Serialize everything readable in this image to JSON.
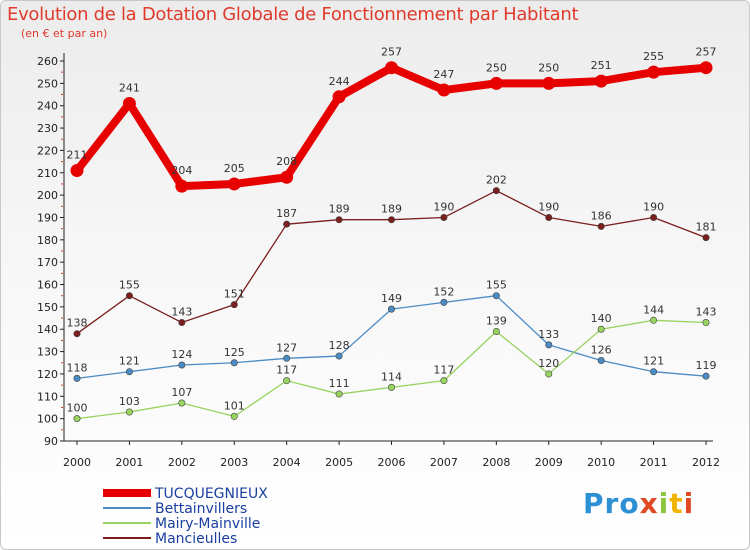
{
  "header": {
    "title": "Evolution de la Dotation Globale de Fonctionnement par Habitant",
    "subtitle": "(en € et par an)"
  },
  "logo": {
    "chars": [
      "P",
      "r",
      "o",
      "x",
      "i",
      "t",
      "i"
    ]
  },
  "chart_data": {
    "type": "line",
    "title": "Evolution de la Dotation Globale de Fonctionnement par Habitant",
    "ylabel": "(en € et par an)",
    "xlabel": "",
    "ylim": [
      90,
      260
    ],
    "yticks": [
      90,
      100,
      110,
      120,
      130,
      140,
      150,
      160,
      170,
      180,
      190,
      200,
      210,
      220,
      230,
      240,
      250,
      260
    ],
    "grid": false,
    "legend_position": "bottom-left",
    "x": [
      "2000",
      "2001",
      "2002",
      "2003",
      "2004",
      "2005",
      "2006",
      "2007",
      "2008",
      "2009",
      "2010",
      "2011",
      "2012"
    ],
    "series": [
      {
        "name": "TUCQUEGNIEUX",
        "color": "#e60000",
        "emphasis": true,
        "values": [
          211,
          241,
          204,
          205,
          208,
          244,
          257,
          247,
          250,
          250,
          251,
          255,
          257
        ]
      },
      {
        "name": "Bettainvillers",
        "color": "#4a8bc4",
        "emphasis": false,
        "values": [
          118,
          121,
          124,
          125,
          127,
          128,
          149,
          152,
          155,
          133,
          126,
          121,
          119
        ]
      },
      {
        "name": "Mairy-Mainville",
        "color": "#97d35f",
        "emphasis": false,
        "values": [
          100,
          103,
          107,
          101,
          117,
          111,
          114,
          117,
          139,
          120,
          140,
          144,
          143
        ]
      },
      {
        "name": "Mancieulles",
        "color": "#7a1e1e",
        "emphasis": false,
        "values": [
          138,
          155,
          143,
          151,
          187,
          189,
          189,
          190,
          202,
          190,
          186,
          190,
          181
        ]
      }
    ]
  }
}
